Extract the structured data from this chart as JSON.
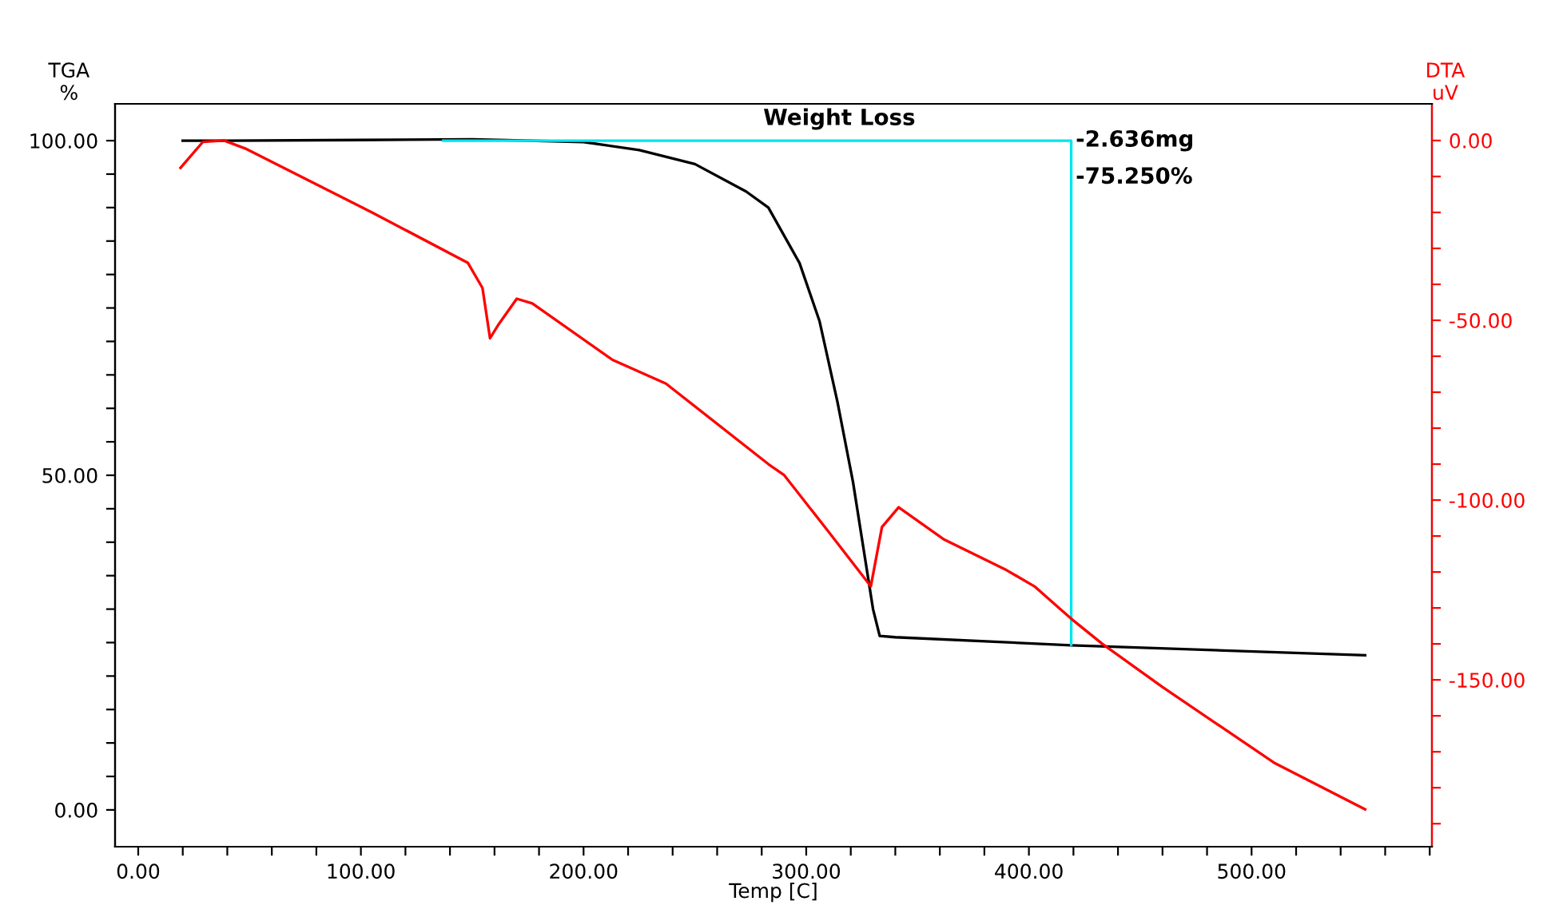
{
  "chart_data": {
    "type": "line",
    "xlabel": "Temp [C]",
    "ylabel": "TGA\n%",
    "y2label": "DTA\nuV",
    "xlim": [
      -10.4,
      581
    ],
    "ylim": [
      -5.5,
      105.5
    ],
    "y2lim": [
      -196.4,
      10.2
    ],
    "xticks": [
      {
        "value": 0,
        "label": "0.00"
      },
      {
        "value": 20,
        "label": null
      },
      {
        "value": 40,
        "label": null
      },
      {
        "value": 60,
        "label": null
      },
      {
        "value": 80,
        "label": null
      },
      {
        "value": 100,
        "label": "100.00"
      },
      {
        "value": 120,
        "label": null
      },
      {
        "value": 140,
        "label": null
      },
      {
        "value": 160,
        "label": null
      },
      {
        "value": 180,
        "label": null
      },
      {
        "value": 200,
        "label": "200.00"
      },
      {
        "value": 220,
        "label": null
      },
      {
        "value": 240,
        "label": null
      },
      {
        "value": 260,
        "label": null
      },
      {
        "value": 280,
        "label": null
      },
      {
        "value": 300,
        "label": "300.00"
      },
      {
        "value": 320,
        "label": null
      },
      {
        "value": 340,
        "label": null
      },
      {
        "value": 360,
        "label": null
      },
      {
        "value": 380,
        "label": null
      },
      {
        "value": 400,
        "label": "400.00"
      },
      {
        "value": 420,
        "label": null
      },
      {
        "value": 440,
        "label": null
      },
      {
        "value": 460,
        "label": null
      },
      {
        "value": 480,
        "label": null
      },
      {
        "value": 500,
        "label": "500.00"
      },
      {
        "value": 520,
        "label": null
      },
      {
        "value": 540,
        "label": null
      },
      {
        "value": 560,
        "label": null
      },
      {
        "value": 580,
        "label": null
      }
    ],
    "yticks": [
      {
        "value": 0,
        "label": "0.00"
      },
      {
        "value": 5,
        "label": null
      },
      {
        "value": 10,
        "label": null
      },
      {
        "value": 15,
        "label": null
      },
      {
        "value": 20,
        "label": null
      },
      {
        "value": 25,
        "label": null
      },
      {
        "value": 30,
        "label": null
      },
      {
        "value": 35,
        "label": null
      },
      {
        "value": 40,
        "label": null
      },
      {
        "value": 45,
        "label": null
      },
      {
        "value": 50,
        "label": "50.00"
      },
      {
        "value": 55,
        "label": null
      },
      {
        "value": 60,
        "label": null
      },
      {
        "value": 65,
        "label": null
      },
      {
        "value": 70,
        "label": null
      },
      {
        "value": 75,
        "label": null
      },
      {
        "value": 80,
        "label": null
      },
      {
        "value": 85,
        "label": null
      },
      {
        "value": 90,
        "label": null
      },
      {
        "value": 95,
        "label": null
      },
      {
        "value": 100,
        "label": "100.00"
      }
    ],
    "y2ticks": [
      {
        "value": 0,
        "label": "0.00"
      },
      {
        "value": -10,
        "label": null
      },
      {
        "value": -20,
        "label": null
      },
      {
        "value": -30,
        "label": null
      },
      {
        "value": -40,
        "label": null
      },
      {
        "value": -50,
        "label": "-50.00"
      },
      {
        "value": -60,
        "label": null
      },
      {
        "value": -70,
        "label": null
      },
      {
        "value": -80,
        "label": null
      },
      {
        "value": -90,
        "label": null
      },
      {
        "value": -100,
        "label": "-100.00"
      },
      {
        "value": -110,
        "label": null
      },
      {
        "value": -120,
        "label": null
      },
      {
        "value": -130,
        "label": null
      },
      {
        "value": -140,
        "label": null
      },
      {
        "value": -150,
        "label": "-150.00"
      },
      {
        "value": -160,
        "label": null
      },
      {
        "value": -170,
        "label": null
      },
      {
        "value": -180,
        "label": null
      },
      {
        "value": -190,
        "label": null
      }
    ],
    "series": [
      {
        "color": "#000000",
        "x": [
          20,
          40,
          100,
          150,
          200,
          225,
          250,
          273,
          283,
          297,
          306,
          314,
          321,
          330,
          333,
          340,
          419,
          551
        ],
        "values": [
          100,
          100,
          100.1,
          100.2,
          99.8,
          98.6,
          96.5,
          92.4,
          90,
          81.7,
          73,
          61,
          49,
          30,
          26,
          25.8,
          24.6,
          23.1
        ]
      },
      {
        "color": "#00e5ee",
        "x": [
          137,
          419,
          419
        ],
        "values": [
          100,
          100,
          24.7
        ]
      },
      {
        "color": "#ff0000",
        "axis": "y2",
        "x": [
          19,
          29,
          38.5,
          48,
          105,
          148,
          154.6,
          158,
          162,
          170,
          177,
          213,
          237,
          283,
          290,
          309,
          329,
          334,
          341.5,
          362,
          390,
          402.5,
          419,
          433,
          460,
          510,
          551
        ],
        "values": [
          -7.6,
          -0.4,
          0,
          -2.2,
          -20,
          -34,
          -41,
          -55,
          -51,
          -44,
          -45.3,
          -61,
          -67.6,
          -90,
          -93,
          -108,
          -124,
          -107.5,
          -102,
          -111,
          -119.5,
          -124,
          -133,
          -140,
          -152,
          -173,
          -186
        ]
      }
    ],
    "annotations": [
      "Weight Loss",
      {
        "text": "-2.636mg",
        "x": 419,
        "y": 100
      },
      {
        "text": "-75.250%",
        "x": 419,
        "y": 94.5
      }
    ],
    "grid": false,
    "legend": false
  }
}
